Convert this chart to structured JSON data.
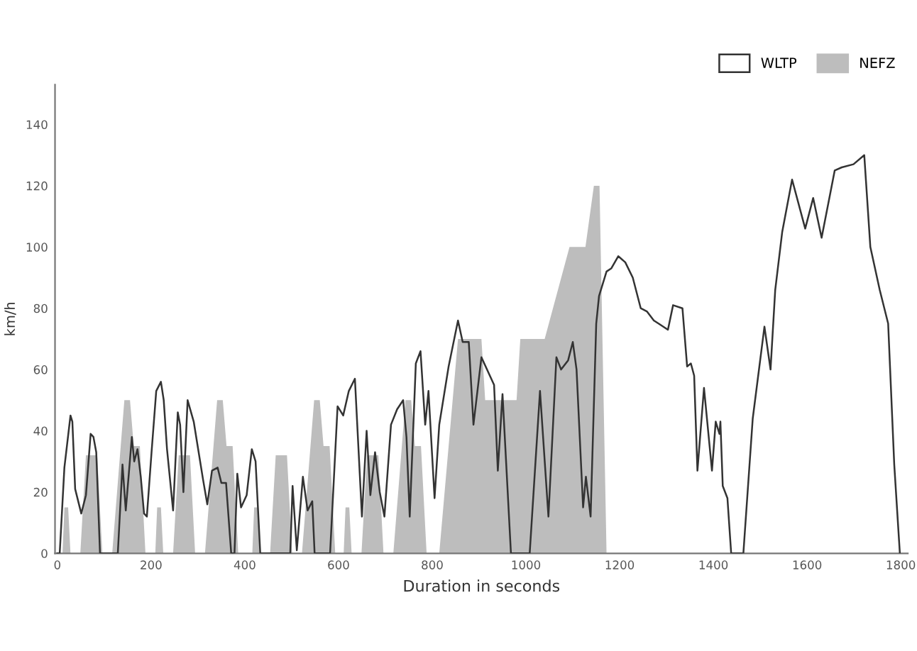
{
  "chart_data": {
    "type": "line",
    "xlabel": "Duration in seconds",
    "ylabel": "km/h",
    "xlim": [
      -5,
      1815
    ],
    "ylim": [
      0,
      153
    ],
    "xticks": [
      0,
      200,
      400,
      600,
      800,
      1000,
      1200,
      1400,
      1600,
      1800
    ],
    "yticks": [
      0,
      20,
      40,
      60,
      80,
      100,
      120,
      140
    ],
    "grid": false,
    "legend": "top right",
    "series": [
      {
        "name": "NEFZ",
        "type": "area",
        "color": "#bdbdbd",
        "x": [
          0,
          11,
          15,
          23,
          28,
          49,
          61,
          85,
          96,
          117,
          143,
          155,
          163,
          176,
          188,
          209,
          213,
          221,
          226,
          247,
          259,
          283,
          294,
          315,
          341,
          353,
          361,
          374,
          386,
          416,
          420,
          428,
          433,
          454,
          466,
          490,
          501,
          522,
          548,
          560,
          568,
          581,
          593,
          611,
          615,
          623,
          628,
          649,
          661,
          685,
          696,
          717,
          743,
          755,
          763,
          776,
          788,
          815,
          855,
          905,
          913,
          980,
          988,
          1040,
          1093,
          1127,
          1145,
          1157,
          1172,
          1190
        ],
        "values": [
          0,
          0,
          15,
          15,
          0,
          0,
          32,
          32,
          0,
          0,
          50,
          50,
          35,
          35,
          0,
          0,
          15,
          15,
          0,
          0,
          32,
          32,
          0,
          0,
          50,
          50,
          35,
          35,
          0,
          0,
          15,
          15,
          0,
          0,
          32,
          32,
          0,
          0,
          50,
          50,
          35,
          35,
          0,
          0,
          15,
          15,
          0,
          0,
          32,
          32,
          0,
          0,
          50,
          50,
          35,
          35,
          0,
          0,
          70,
          70,
          50,
          50,
          70,
          70,
          100,
          100,
          120,
          120,
          0,
          0
        ]
      },
      {
        "name": "WLTP",
        "color": "#333333",
        "x": [
          0,
          5,
          15,
          28,
          32,
          38,
          51,
          61,
          71,
          77,
          83,
          91,
          129,
          139,
          146,
          159,
          164,
          171,
          178,
          185,
          191,
          201,
          211,
          221,
          227,
          234,
          247,
          257,
          262,
          269,
          278,
          291,
          311,
          320,
          330,
          342,
          350,
          360,
          371,
          378,
          384,
          392,
          404,
          415,
          423,
          433,
          497,
          502,
          511,
          524,
          534,
          544,
          549,
          582,
          598,
          610,
          622,
          635,
          650,
          660,
          668,
          678,
          688,
          698,
          712,
          725,
          738,
          745,
          752,
          765,
          775,
          785,
          792,
          805,
          815,
          835,
          855,
          865,
          878,
          888,
          905,
          932,
          940,
          950,
          968,
          1008,
          1030,
          1048,
          1065,
          1075,
          1090,
          1100,
          1108,
          1122,
          1128,
          1138,
          1150,
          1156,
          1172,
          1182,
          1197,
          1212,
          1228,
          1245,
          1258,
          1273,
          1283,
          1303,
          1314,
          1334,
          1344,
          1352,
          1359,
          1366,
          1380,
          1397,
          1405,
          1413,
          1415,
          1420,
          1430,
          1438,
          1464,
          1484,
          1509,
          1522,
          1532,
          1547,
          1568,
          1596,
          1613,
          1631,
          1659,
          1674,
          1699,
          1722,
          1735,
          1755,
          1773,
          1786,
          1798
        ],
        "values": [
          0,
          0,
          28,
          45,
          43,
          21,
          13,
          19,
          39,
          38,
          33,
          0,
          0,
          29,
          14,
          38,
          30,
          34,
          25,
          13,
          12,
          33,
          53,
          56,
          50,
          34,
          14,
          46,
          42,
          20,
          50,
          43,
          24,
          16,
          27,
          28,
          23,
          23,
          0,
          0,
          26,
          15,
          19,
          34,
          30,
          0,
          0,
          22,
          1,
          25,
          14,
          17,
          0,
          0,
          48,
          45,
          53,
          57,
          12,
          40,
          19,
          33,
          20,
          12,
          42,
          47,
          50,
          38,
          12,
          62,
          66,
          42,
          53,
          18,
          42,
          61,
          76,
          69,
          69,
          42,
          64,
          55,
          27,
          52,
          0,
          0,
          53,
          12,
          64,
          60,
          63,
          69,
          60,
          15,
          25,
          12,
          75,
          84,
          92,
          93,
          97,
          95,
          90,
          80,
          79,
          76,
          75,
          73,
          81,
          80,
          61,
          62,
          58,
          27,
          54,
          27,
          43,
          39,
          43,
          22,
          18,
          0,
          0,
          44,
          74,
          60,
          86,
          105,
          122,
          106,
          116,
          103,
          125,
          126,
          127,
          130,
          100,
          86,
          75,
          29,
          0
        ]
      }
    ]
  }
}
